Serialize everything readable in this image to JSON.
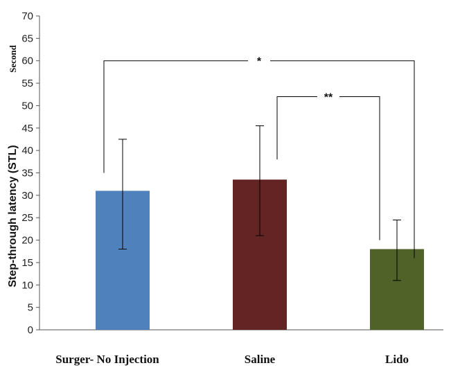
{
  "chart_data": {
    "type": "bar",
    "categories": [
      "Surger- No Injection",
      "Saline",
      "Lido"
    ],
    "values": [
      31,
      33.5,
      18
    ],
    "error_low": [
      18,
      21,
      11
    ],
    "error_high": [
      42.5,
      45.5,
      24.5
    ],
    "colors": [
      "#4f81bd",
      "#632523",
      "#4f6228"
    ],
    "ylabel": "Step-through latency (STL)",
    "ylabel_unit": "Second",
    "ylim": [
      0,
      70
    ],
    "ytick_step": 5,
    "grid": false,
    "significance": [
      {
        "from": 0,
        "to": 2,
        "label": "*",
        "y": 60
      },
      {
        "from": 1,
        "to": 2,
        "label": "**",
        "y": 52
      }
    ]
  }
}
